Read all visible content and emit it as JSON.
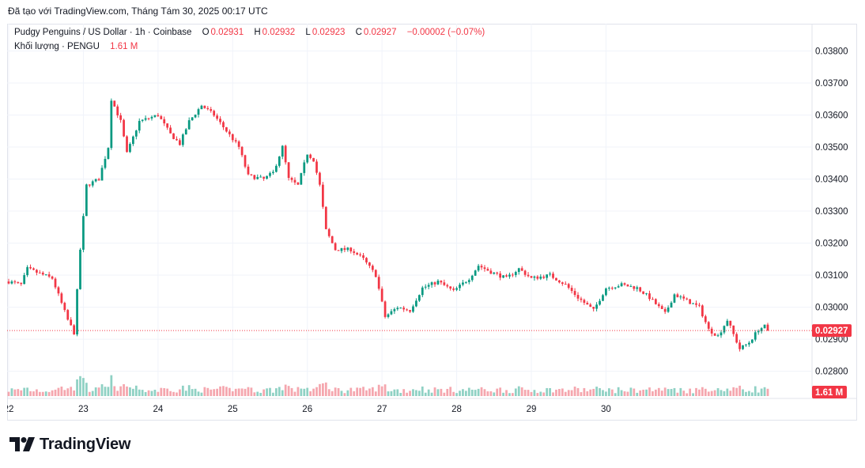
{
  "caption": "Đã tạo với TradingView.com, Tháng Tám 30, 2025 00:17 UTC",
  "legend": {
    "symbol": "Pudgy Penguins / US Dollar · 1h · Coinbase",
    "o_label": "O",
    "o_value": "0.02931",
    "h_label": "H",
    "h_value": "0.02932",
    "l_label": "L",
    "l_value": "0.02923",
    "c_label": "C",
    "c_value": "0.02927",
    "change": "−0.00002 (−0.07%)",
    "volume_label": "Khối lượng · PENGU",
    "volume_value": "1.61 M"
  },
  "colors": {
    "up": "#089981",
    "down": "#f23645",
    "up_volume": "#8fd1c4",
    "down_volume": "#f5a6ae"
  },
  "brand": "TradingView",
  "chart_data": {
    "type": "candlestick",
    "symbol": "PENGU/USD",
    "interval": "1h",
    "y_ticks": [
      "0.03800",
      "0.03700",
      "0.03600",
      "0.03500",
      "0.03400",
      "0.03300",
      "0.03200",
      "0.03100",
      "0.03000",
      "0.02900",
      "0.02800"
    ],
    "ylim": [
      0.02725,
      0.03885
    ],
    "x_ticks": [
      "22",
      "23",
      "24",
      "25",
      "26",
      "27",
      "28",
      "29",
      "30"
    ],
    "last_price_label": "0.02927",
    "last_volume_label": "1.61 M",
    "grid": true,
    "key_points": [
      {
        "t": 0,
        "p": 0.0308
      },
      {
        "t": 4,
        "p": 0.0307
      },
      {
        "t": 6,
        "p": 0.0312
      },
      {
        "t": 14,
        "p": 0.0309
      },
      {
        "t": 19,
        "p": 0.0296
      },
      {
        "t": 21,
        "p": 0.0292
      },
      {
        "t": 23,
        "p": 0.0318
      },
      {
        "t": 25,
        "p": 0.0338
      },
      {
        "t": 29,
        "p": 0.034
      },
      {
        "t": 32,
        "p": 0.035
      },
      {
        "t": 33,
        "p": 0.0365
      },
      {
        "t": 36,
        "p": 0.0358
      },
      {
        "t": 38,
        "p": 0.0348
      },
      {
        "t": 42,
        "p": 0.0358
      },
      {
        "t": 48,
        "p": 0.036
      },
      {
        "t": 52,
        "p": 0.0354
      },
      {
        "t": 55,
        "p": 0.0351
      },
      {
        "t": 58,
        "p": 0.0358
      },
      {
        "t": 62,
        "p": 0.0363
      },
      {
        "t": 66,
        "p": 0.036
      },
      {
        "t": 70,
        "p": 0.0355
      },
      {
        "t": 74,
        "p": 0.035
      },
      {
        "t": 77,
        "p": 0.0341
      },
      {
        "t": 82,
        "p": 0.034
      },
      {
        "t": 85,
        "p": 0.0342
      },
      {
        "t": 88,
        "p": 0.035
      },
      {
        "t": 90,
        "p": 0.034
      },
      {
        "t": 93,
        "p": 0.0338
      },
      {
        "t": 96,
        "p": 0.0348
      },
      {
        "t": 98,
        "p": 0.0346
      },
      {
        "t": 100,
        "p": 0.0338
      },
      {
        "t": 102,
        "p": 0.0324
      },
      {
        "t": 105,
        "p": 0.0318
      },
      {
        "t": 110,
        "p": 0.0318
      },
      {
        "t": 114,
        "p": 0.0315
      },
      {
        "t": 118,
        "p": 0.031
      },
      {
        "t": 121,
        "p": 0.0297
      },
      {
        "t": 125,
        "p": 0.03
      },
      {
        "t": 129,
        "p": 0.0299
      },
      {
        "t": 133,
        "p": 0.0306
      },
      {
        "t": 138,
        "p": 0.0308
      },
      {
        "t": 143,
        "p": 0.0305
      },
      {
        "t": 148,
        "p": 0.0309
      },
      {
        "t": 151,
        "p": 0.0313
      },
      {
        "t": 155,
        "p": 0.0311
      },
      {
        "t": 160,
        "p": 0.0309
      },
      {
        "t": 164,
        "p": 0.0312
      },
      {
        "t": 168,
        "p": 0.0309
      },
      {
        "t": 174,
        "p": 0.031
      },
      {
        "t": 179,
        "p": 0.0307
      },
      {
        "t": 183,
        "p": 0.0303
      },
      {
        "t": 188,
        "p": 0.0299
      },
      {
        "t": 192,
        "p": 0.0306
      },
      {
        "t": 197,
        "p": 0.0307
      },
      {
        "t": 202,
        "p": 0.0306
      },
      {
        "t": 206,
        "p": 0.0303
      },
      {
        "t": 211,
        "p": 0.0298
      },
      {
        "t": 214,
        "p": 0.0304
      },
      {
        "t": 218,
        "p": 0.0302
      },
      {
        "t": 222,
        "p": 0.03
      },
      {
        "t": 225,
        "p": 0.0293
      },
      {
        "t": 228,
        "p": 0.0291
      },
      {
        "t": 231,
        "p": 0.0296
      },
      {
        "t": 235,
        "p": 0.0287
      },
      {
        "t": 238,
        "p": 0.0289
      },
      {
        "t": 241,
        "p": 0.0293
      },
      {
        "t": 243,
        "p": 0.0294
      },
      {
        "t": 244,
        "p": 0.02927
      }
    ]
  }
}
